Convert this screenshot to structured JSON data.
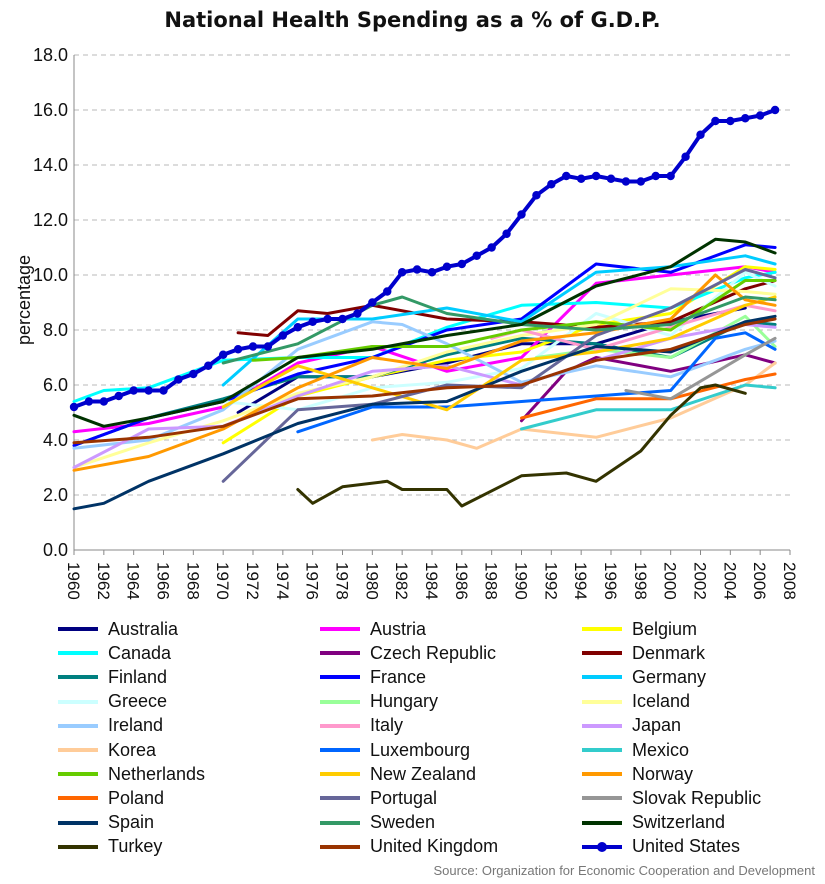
{
  "chart_data": {
    "type": "line",
    "title": "National Health Spending as a % of G.D.P.",
    "ylabel": "percentage",
    "xlabel": "",
    "ylim": [
      0,
      18
    ],
    "yticks": [
      "0.0",
      "2.0",
      "4.0",
      "6.0",
      "8.0",
      "10.0",
      "12.0",
      "14.0",
      "16.0",
      "18.0"
    ],
    "xlim": [
      1960,
      2008
    ],
    "xticks": [
      "1960",
      "1962",
      "1964",
      "1966",
      "1968",
      "1970",
      "1972",
      "1974",
      "1976",
      "1978",
      "1980",
      "1982",
      "1984",
      "1986",
      "1988",
      "1990",
      "1992",
      "1994",
      "1996",
      "1998",
      "2000",
      "2002",
      "2004",
      "2006",
      "2008"
    ],
    "grid": "horizontal dashed",
    "legend_position": "bottom",
    "source": "Source: Organization for Economic Cooperation and Development",
    "series": [
      {
        "name": "Australia",
        "color": "#000080",
        "x": [
          1971,
          1975,
          1980,
          1985,
          1990,
          1995,
          2000,
          2005
        ],
        "values": [
          5.0,
          6.3,
          6.3,
          6.8,
          7.5,
          7.5,
          8.3,
          8.8
        ]
      },
      {
        "name": "Austria",
        "color": "#ff00ff",
        "x": [
          1960,
          1965,
          1970,
          1975,
          1980,
          1985,
          1990,
          1995,
          2000,
          2005,
          2007
        ],
        "values": [
          4.3,
          4.6,
          5.2,
          6.8,
          7.4,
          6.5,
          7.0,
          9.7,
          10.0,
          10.3,
          10.1
        ]
      },
      {
        "name": "Belgium",
        "color": "#ffff00",
        "x": [
          1970,
          1975,
          1980,
          1985,
          1990,
          1995,
          2000,
          2005,
          2007
        ],
        "values": [
          3.9,
          5.6,
          6.3,
          6.9,
          7.2,
          8.2,
          8.6,
          10.3,
          10.2
        ]
      },
      {
        "name": "Canada",
        "color": "#00ffff",
        "x": [
          1960,
          1962,
          1965,
          1970,
          1975,
          1980,
          1985,
          1990,
          1995,
          2000,
          2005,
          2007
        ],
        "values": [
          5.4,
          5.8,
          5.9,
          6.9,
          7.0,
          7.0,
          8.1,
          8.9,
          9.0,
          8.8,
          9.9,
          10.1
        ]
      },
      {
        "name": "Czech Republic",
        "color": "#800080",
        "x": [
          1990,
          1993,
          1995,
          2000,
          2005,
          2007
        ],
        "values": [
          4.7,
          6.5,
          7.0,
          6.5,
          7.1,
          6.8
        ]
      },
      {
        "name": "Denmark",
        "color": "#800000",
        "x": [
          1971,
          1973,
          1975,
          1977,
          1980,
          1985,
          1990,
          1995,
          2000,
          2005,
          2007
        ],
        "values": [
          7.9,
          7.8,
          8.7,
          8.6,
          8.9,
          8.4,
          8.3,
          8.1,
          8.3,
          9.5,
          9.8
        ]
      },
      {
        "name": "Finland",
        "color": "#008080",
        "x": [
          1960,
          1965,
          1970,
          1975,
          1980,
          1985,
          1990,
          1995,
          2000,
          2005,
          2007
        ],
        "values": [
          3.8,
          4.8,
          5.5,
          6.3,
          6.3,
          7.1,
          7.7,
          7.5,
          7.0,
          8.3,
          8.2
        ]
      },
      {
        "name": "France",
        "color": "#0000ff",
        "x": [
          1960,
          1965,
          1970,
          1975,
          1980,
          1985,
          1990,
          1995,
          2000,
          2005,
          2007
        ],
        "values": [
          3.8,
          4.8,
          5.4,
          6.4,
          7.0,
          8.0,
          8.4,
          10.4,
          10.1,
          11.1,
          11.0
        ]
      },
      {
        "name": "Germany",
        "color": "#00ccff",
        "x": [
          1970,
          1975,
          1980,
          1985,
          1990,
          1995,
          2000,
          2005,
          2007
        ],
        "values": [
          6.0,
          8.4,
          8.4,
          8.8,
          8.3,
          10.1,
          10.3,
          10.7,
          10.4
        ]
      },
      {
        "name": "Greece",
        "color": "#ccffff",
        "x": [
          1970,
          1975,
          1980,
          1985,
          1990,
          1995,
          2000,
          2005,
          2007
        ],
        "values": [
          5.4,
          5.1,
          5.9,
          6.1,
          6.6,
          8.6,
          7.8,
          10.1,
          9.6
        ]
      },
      {
        "name": "Hungary",
        "color": "#99ff99",
        "x": [
          1991,
          1995,
          2000,
          2005,
          2007
        ],
        "values": [
          7.0,
          7.3,
          7.0,
          8.5,
          7.4
        ]
      },
      {
        "name": "Iceland",
        "color": "#ffff99",
        "x": [
          1960,
          1965,
          1970,
          1975,
          1980,
          1985,
          1990,
          1995,
          2000,
          2005,
          2007
        ],
        "values": [
          3.0,
          3.9,
          4.7,
          5.7,
          6.3,
          7.2,
          7.8,
          8.2,
          9.5,
          9.4,
          9.3
        ]
      },
      {
        "name": "Ireland",
        "color": "#99ccff",
        "x": [
          1960,
          1965,
          1970,
          1975,
          1980,
          1982,
          1985,
          1990,
          1995,
          2000,
          2005,
          2007
        ],
        "values": [
          3.7,
          4.0,
          5.1,
          7.3,
          8.3,
          8.2,
          7.5,
          6.1,
          6.7,
          6.3,
          7.3,
          7.6
        ]
      },
      {
        "name": "Italy",
        "color": "#ff99cc",
        "x": [
          1988,
          1990,
          1995,
          2000,
          2005,
          2007
        ],
        "values": [
          7.7,
          8.0,
          7.3,
          8.1,
          8.9,
          8.7
        ]
      },
      {
        "name": "Japan",
        "color": "#cc99ff",
        "x": [
          1960,
          1965,
          1970,
          1975,
          1980,
          1985,
          1990,
          1995,
          2000,
          2005,
          2007
        ],
        "values": [
          3.0,
          4.4,
          4.5,
          5.6,
          6.5,
          6.7,
          6.0,
          6.9,
          7.7,
          8.2,
          8.1
        ]
      },
      {
        "name": "Korea",
        "color": "#ffcc99",
        "x": [
          1980,
          1982,
          1985,
          1987,
          1990,
          1995,
          2000,
          2005,
          2007
        ],
        "values": [
          4.0,
          4.2,
          4.0,
          3.7,
          4.4,
          4.1,
          4.8,
          6.0,
          6.8
        ]
      },
      {
        "name": "Luxembourg",
        "color": "#0066ff",
        "x": [
          1975,
          1980,
          1985,
          1990,
          1995,
          2000,
          2003,
          2005,
          2007
        ],
        "values": [
          4.3,
          5.2,
          5.2,
          5.4,
          5.6,
          5.8,
          7.7,
          7.9,
          7.3
        ]
      },
      {
        "name": "Mexico",
        "color": "#33cccc",
        "x": [
          1990,
          1995,
          2000,
          2005,
          2007
        ],
        "values": [
          4.4,
          5.1,
          5.1,
          6.0,
          5.9
        ]
      },
      {
        "name": "Netherlands",
        "color": "#66cc00",
        "x": [
          1972,
          1975,
          1980,
          1985,
          1990,
          1995,
          2000,
          2005,
          2007
        ],
        "values": [
          6.9,
          7.0,
          7.4,
          7.4,
          8.0,
          8.3,
          8.0,
          9.8,
          9.8
        ]
      },
      {
        "name": "New Zealand",
        "color": "#ffcc00",
        "x": [
          1970,
          1975,
          1980,
          1985,
          1990,
          1995,
          2000,
          2005,
          2007
        ],
        "values": [
          5.2,
          6.7,
          5.9,
          5.1,
          6.9,
          7.2,
          7.7,
          8.9,
          9.2
        ]
      },
      {
        "name": "Norway",
        "color": "#ff9900",
        "x": [
          1960,
          1965,
          1970,
          1975,
          1980,
          1985,
          1990,
          1995,
          2000,
          2003,
          2005,
          2007
        ],
        "values": [
          2.9,
          3.4,
          4.4,
          5.9,
          7.0,
          6.6,
          7.6,
          7.9,
          8.4,
          10.0,
          9.1,
          8.9
        ]
      },
      {
        "name": "Poland",
        "color": "#ff6600",
        "x": [
          1990,
          1995,
          2000,
          2005,
          2007
        ],
        "values": [
          4.8,
          5.5,
          5.5,
          6.2,
          6.4
        ]
      },
      {
        "name": "Portugal",
        "color": "#666699",
        "x": [
          1970,
          1975,
          1980,
          1985,
          1990,
          1995,
          2000,
          2005,
          2007
        ],
        "values": [
          2.5,
          5.1,
          5.3,
          6.0,
          5.9,
          7.8,
          8.8,
          10.2,
          9.9
        ]
      },
      {
        "name": "Slovak Republic",
        "color": "#969696",
        "x": [
          1997,
          2000,
          2005,
          2007
        ],
        "values": [
          5.8,
          5.5,
          7.1,
          7.7
        ]
      },
      {
        "name": "Spain",
        "color": "#003366",
        "x": [
          1960,
          1962,
          1965,
          1970,
          1975,
          1980,
          1985,
          1990,
          1995,
          2000,
          2005,
          2007
        ],
        "values": [
          1.5,
          1.7,
          2.5,
          3.5,
          4.6,
          5.3,
          5.4,
          6.5,
          7.4,
          7.2,
          8.3,
          8.5
        ]
      },
      {
        "name": "Sweden",
        "color": "#339966",
        "x": [
          1970,
          1975,
          1980,
          1982,
          1985,
          1990,
          1995,
          2000,
          2005,
          2007
        ],
        "values": [
          6.8,
          7.5,
          8.9,
          9.2,
          8.6,
          8.2,
          8.0,
          8.2,
          9.2,
          9.1
        ]
      },
      {
        "name": "Switzerland",
        "color": "#003300",
        "x": [
          1960,
          1962,
          1965,
          1970,
          1975,
          1980,
          1985,
          1990,
          1995,
          2000,
          2003,
          2005,
          2007
        ],
        "values": [
          4.9,
          4.5,
          4.8,
          5.4,
          7.0,
          7.3,
          7.8,
          8.2,
          9.6,
          10.3,
          11.3,
          11.2,
          10.8
        ]
      },
      {
        "name": "Turkey",
        "color": "#333300",
        "x": [
          1975,
          1976,
          1978,
          1981,
          1982,
          1985,
          1986,
          1990,
          1993,
          1995,
          1998,
          2000,
          2002,
          2003,
          2005
        ],
        "values": [
          2.2,
          1.7,
          2.3,
          2.5,
          2.2,
          2.2,
          1.6,
          2.7,
          2.8,
          2.5,
          3.6,
          4.9,
          5.9,
          6.0,
          5.7
        ]
      },
      {
        "name": "United Kingdom",
        "color": "#993300",
        "x": [
          1960,
          1965,
          1970,
          1975,
          1980,
          1985,
          1990,
          1995,
          2000,
          2005,
          2007
        ],
        "values": [
          3.9,
          4.1,
          4.5,
          5.5,
          5.6,
          5.9,
          6.0,
          6.9,
          7.3,
          8.2,
          8.4
        ]
      },
      {
        "name": "United States",
        "color": "#0000cc",
        "markers": true,
        "x": [
          1960,
          1961,
          1962,
          1963,
          1964,
          1965,
          1966,
          1967,
          1968,
          1969,
          1970,
          1971,
          1972,
          1973,
          1974,
          1975,
          1976,
          1977,
          1978,
          1979,
          1980,
          1981,
          1982,
          1983,
          1984,
          1985,
          1986,
          1987,
          1988,
          1989,
          1990,
          1991,
          1992,
          1993,
          1994,
          1995,
          1996,
          1997,
          1998,
          1999,
          2000,
          2001,
          2002,
          2003,
          2004,
          2005,
          2006,
          2007
        ],
        "values": [
          5.2,
          5.4,
          5.4,
          5.6,
          5.8,
          5.8,
          5.8,
          6.2,
          6.4,
          6.7,
          7.1,
          7.3,
          7.4,
          7.4,
          7.8,
          8.1,
          8.3,
          8.4,
          8.4,
          8.6,
          9.0,
          9.4,
          10.1,
          10.2,
          10.1,
          10.3,
          10.4,
          10.7,
          11.0,
          11.5,
          12.2,
          12.9,
          13.3,
          13.6,
          13.5,
          13.6,
          13.5,
          13.4,
          13.4,
          13.6,
          13.6,
          14.3,
          15.1,
          15.6,
          15.6,
          15.7,
          15.8,
          16.0
        ]
      }
    ]
  }
}
